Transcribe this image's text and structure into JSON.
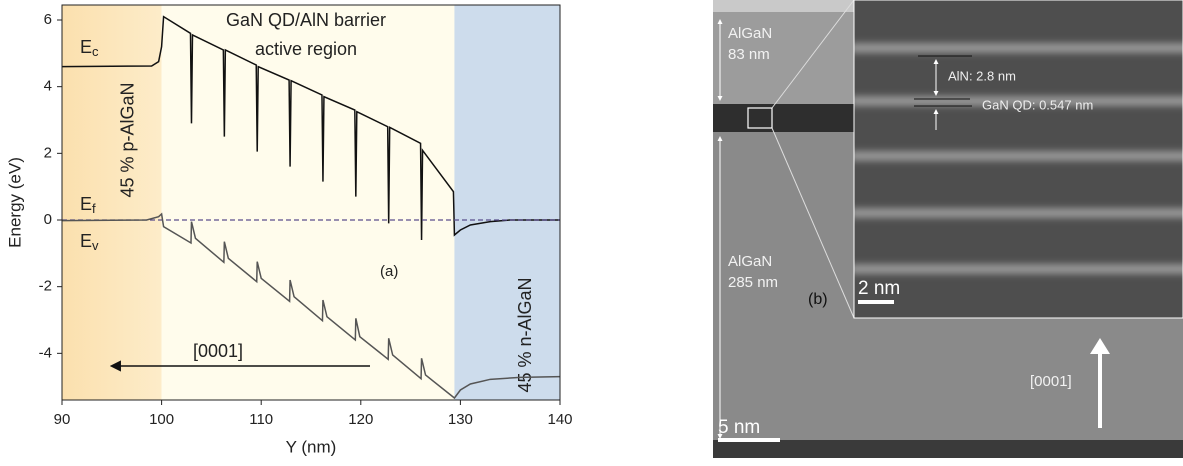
{
  "chart_data": {
    "type": "line",
    "xlabel": "Y (nm)",
    "ylabel": "Energy (eV)",
    "xlim": [
      90,
      140
    ],
    "ylim": [
      -5.4,
      6.45
    ],
    "xticks": [
      90,
      100,
      110,
      120,
      130,
      140
    ],
    "yticks": [
      -4,
      -2,
      0,
      2,
      4,
      6
    ],
    "panel_label": "(a)",
    "direction_label": "[0001]",
    "regions": [
      {
        "label": [
          "45 % p-AlGaN"
        ],
        "xrange": [
          90,
          100
        ],
        "color": "#fbe2b4"
      },
      {
        "label": [
          "GaN QD/AlN barrier",
          "active region"
        ],
        "xrange": [
          100,
          129.4
        ],
        "color": "#fffcec"
      },
      {
        "label": [
          "45 % n-AlGaN"
        ],
        "xrange": [
          129.4,
          140
        ],
        "color": "#cddcec"
      }
    ],
    "series": [
      {
        "name": "Ec",
        "color": "#111111",
        "dashed": false,
        "x": [
          90,
          99,
          99.7,
          100,
          100.2,
          102.9,
          103.0,
          103.1,
          106.2,
          106.3,
          106.4,
          109.5,
          109.6,
          109.7,
          112.8,
          112.9,
          113.0,
          116.1,
          116.2,
          116.3,
          119.4,
          119.5,
          119.6,
          122.7,
          122.8,
          122.9,
          126.0,
          126.1,
          126.2,
          129.3,
          129.4,
          130,
          131,
          133,
          135,
          140
        ],
        "values": [
          4.6,
          4.62,
          4.75,
          5.2,
          6.1,
          5.6,
          2.9,
          5.55,
          5.1,
          2.5,
          5.1,
          4.65,
          2.05,
          4.6,
          4.2,
          1.6,
          4.18,
          3.75,
          1.15,
          3.7,
          3.3,
          0.7,
          3.25,
          2.8,
          -0.1,
          2.78,
          2.3,
          -0.6,
          2.09,
          0.85,
          -0.45,
          -0.3,
          -0.15,
          -0.05,
          0,
          0
        ]
      },
      {
        "name": "Ef",
        "color": "#5a4e8c",
        "dashed": true,
        "x": [
          90,
          140
        ],
        "values": [
          0,
          0
        ]
      },
      {
        "name": "Ev",
        "color": "#555555",
        "dashed": false,
        "x": [
          90,
          98.5,
          99.7,
          100,
          100.2,
          102.95,
          103.0,
          103.4,
          106.25,
          106.3,
          106.7,
          109.55,
          109.6,
          110.0,
          112.85,
          112.9,
          113.3,
          116.15,
          116.2,
          116.6,
          119.45,
          119.5,
          119.9,
          122.75,
          122.8,
          123.2,
          126.05,
          126.1,
          126.5,
          129.4,
          130,
          131,
          133,
          136,
          140
        ],
        "values": [
          -0.02,
          0,
          0.1,
          0.18,
          -0.2,
          -0.69,
          -0.05,
          -0.55,
          -1.27,
          -0.65,
          -1.15,
          -1.85,
          -1.25,
          -1.75,
          -2.44,
          -1.8,
          -2.3,
          -3.02,
          -2.4,
          -2.9,
          -3.6,
          -2.95,
          -3.5,
          -4.18,
          -3.55,
          -4.05,
          -4.76,
          -4.15,
          -4.65,
          -5.34,
          -5.1,
          -4.92,
          -4.78,
          -4.72,
          -4.7
        ]
      }
    ]
  },
  "image": {
    "panel_label": "(b)",
    "layers": [
      {
        "material": "AlGaN",
        "thickness": "83 nm"
      },
      {
        "material": "AlGaN",
        "thickness": "285 nm"
      }
    ],
    "inset": {
      "annotations": [
        "AlN: 2.8 nm",
        "GaN QD: 0.547 nm"
      ],
      "scale_bar": "2 nm"
    },
    "scale_bar": "5 nm",
    "direction": "[0001]"
  }
}
